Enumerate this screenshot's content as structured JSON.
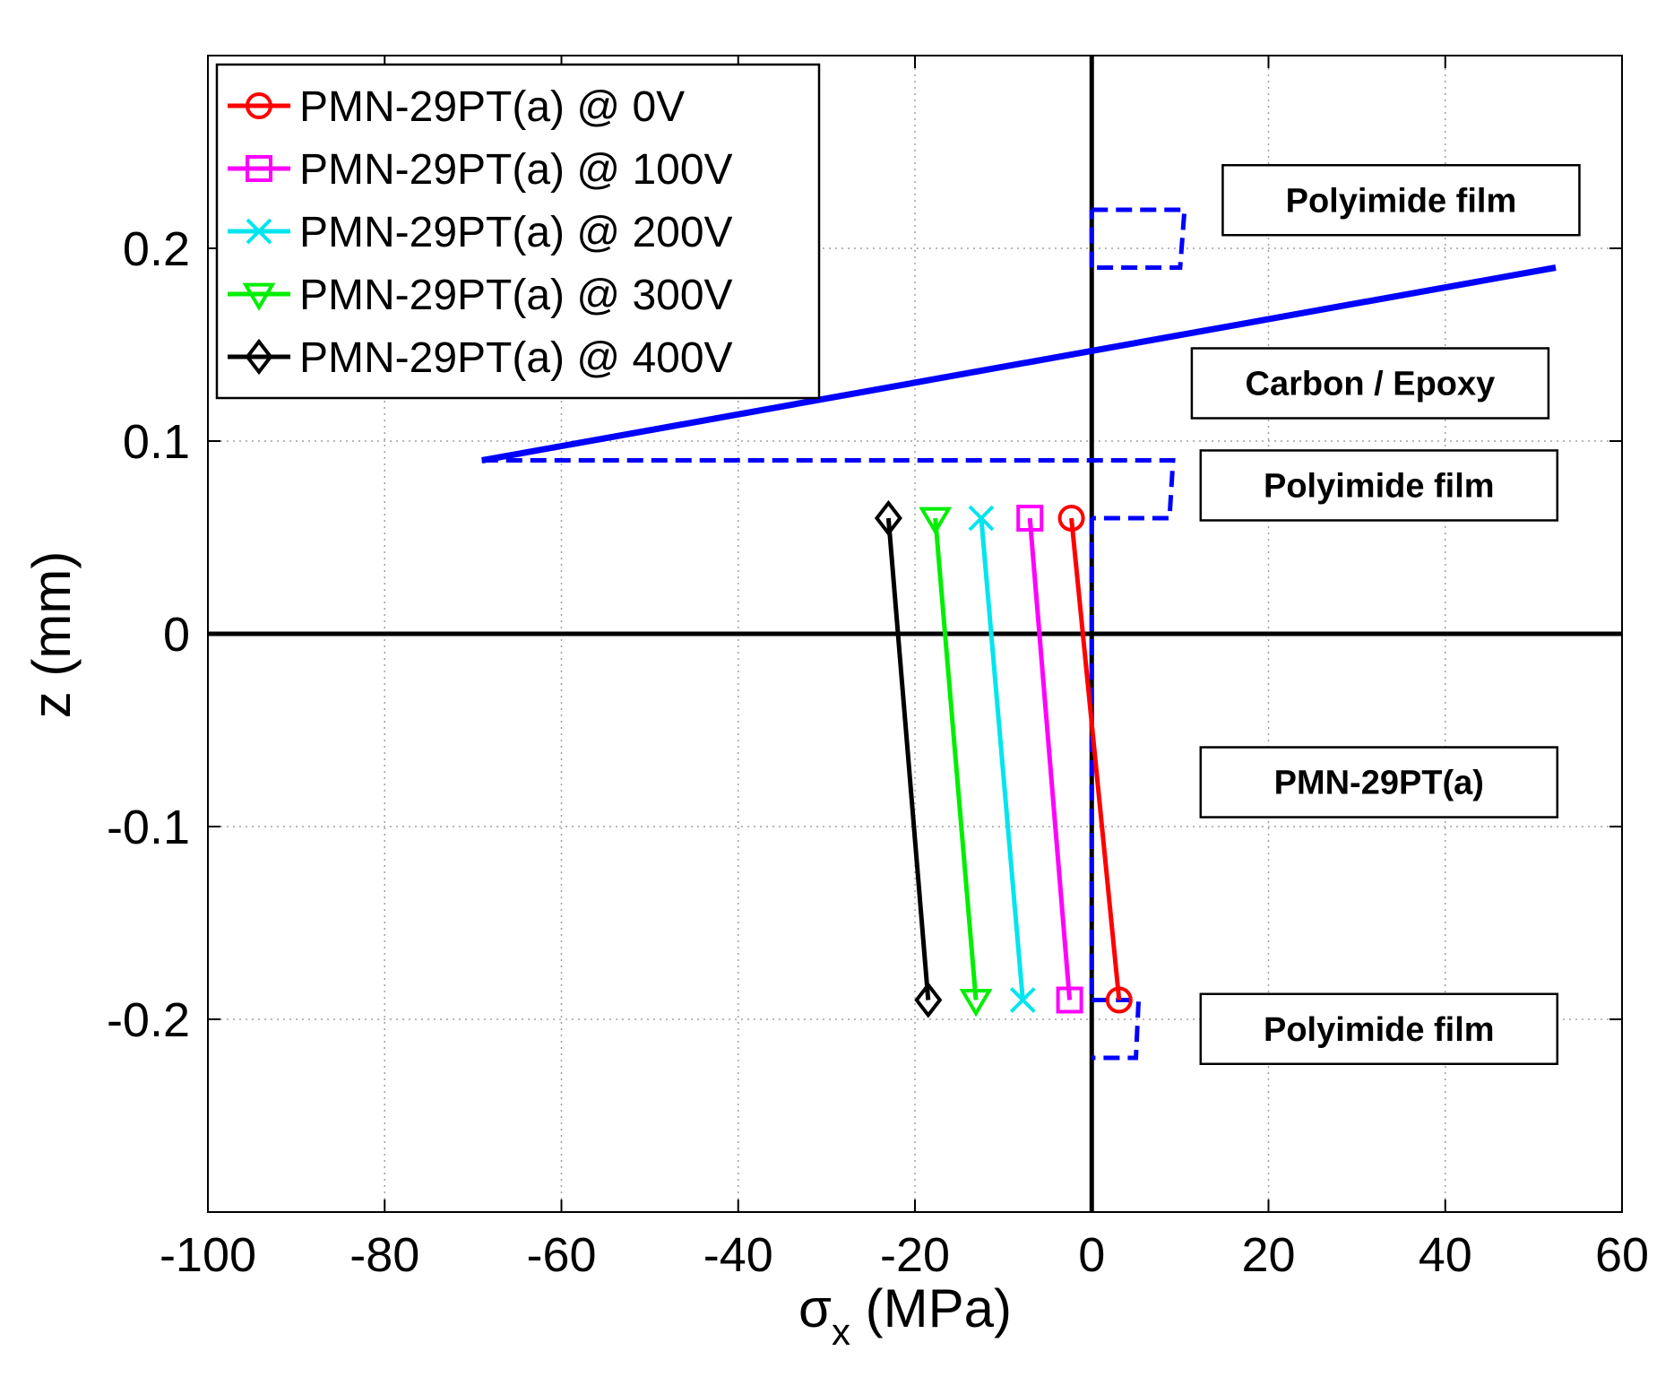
{
  "chart_data": {
    "type": "line",
    "title": "",
    "xlabel": "σ",
    "xlabel_sub": "x",
    "xlabel_unit": " (MPa)",
    "ylabel": "z (mm)",
    "xlim": [
      -100,
      60
    ],
    "ylim": [
      -0.3,
      0.3
    ],
    "xticks": [
      -100,
      -80,
      -60,
      -40,
      -20,
      0,
      20,
      40,
      60
    ],
    "xtick_labels": [
      "-100",
      "-80",
      "-60",
      "-40",
      "-20",
      "0",
      "20",
      "40",
      "60"
    ],
    "yticks": [
      -0.2,
      -0.1,
      0,
      0.1,
      0.2
    ],
    "ytick_labels": [
      "-0.2",
      "-0.1",
      "0",
      "0.1",
      "0.2"
    ],
    "grid": true,
    "legend_position": "top-left",
    "series": [
      {
        "name": "PMN-29PT(a) @ 0V",
        "color": "#ff0000",
        "marker": "circle",
        "points": [
          [
            -2.3,
            0.06
          ],
          [
            3.1,
            -0.19
          ]
        ]
      },
      {
        "name": "PMN-29PT(a) @ 100V",
        "color": "#ff00ff",
        "marker": "square",
        "points": [
          [
            -7.0,
            0.06
          ],
          [
            -2.5,
            -0.19
          ]
        ]
      },
      {
        "name": "PMN-29PT(a) @ 200V",
        "color": "#00e5ee",
        "marker": "x",
        "points": [
          [
            -12.5,
            0.06
          ],
          [
            -7.8,
            -0.19
          ]
        ]
      },
      {
        "name": "PMN-29PT(a) @ 300V",
        "color": "#00ee00",
        "marker": "triangle-down",
        "points": [
          [
            -17.7,
            0.06
          ],
          [
            -13.1,
            -0.19
          ]
        ]
      },
      {
        "name": "PMN-29PT(a) @ 400V",
        "color": "#000000",
        "marker": "diamond",
        "points": [
          [
            -23.0,
            0.06
          ],
          [
            -18.5,
            -0.19
          ]
        ]
      }
    ],
    "blue_solid_line": {
      "color": "#0000ff",
      "points": [
        [
          -69,
          0.09
        ],
        [
          52.5,
          0.19
        ]
      ]
    },
    "blue_dashed_profile": {
      "color": "#0000ff",
      "segments": [
        [
          [
            0,
            0.22
          ],
          [
            10.5,
            0.22
          ],
          [
            10.0,
            0.19
          ],
          [
            0,
            0.19
          ]
        ],
        [
          [
            -69,
            0.09
          ],
          [
            9.2,
            0.09
          ],
          [
            8.8,
            0.06
          ],
          [
            0,
            0.06
          ]
        ],
        [
          [
            0,
            0.06
          ],
          [
            0,
            -0.19
          ]
        ],
        [
          [
            0,
            -0.19
          ],
          [
            5.3,
            -0.19
          ],
          [
            5.0,
            -0.22
          ],
          [
            0,
            -0.22
          ]
        ],
        [
          [
            0,
            0.19
          ],
          [
            0,
            0.22
          ]
        ]
      ]
    },
    "annotations": [
      {
        "text": "Polyimide film",
        "x": 35,
        "z": 0.225
      },
      {
        "text": "Carbon / Epoxy",
        "x": 31.5,
        "z": 0.13
      },
      {
        "text": "Polyimide film",
        "x": 32.5,
        "z": 0.077
      },
      {
        "text": "PMN-29PT(a)",
        "x": 32.5,
        "z": -0.077
      },
      {
        "text": "Polyimide film",
        "x": 32.5,
        "z": -0.205
      }
    ]
  }
}
